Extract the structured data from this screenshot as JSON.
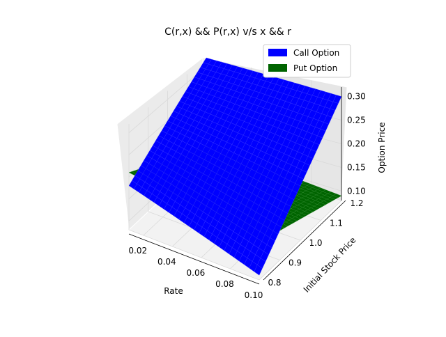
{
  "chart_data": {
    "type": "surface",
    "title": "C(r,x) && P(r,x) v/s x && r",
    "xlabel": "Rate",
    "ylabel": "Initial Stock Price",
    "zlabel": "Option Price",
    "xlim": [
      0.01,
      0.1
    ],
    "ylim": [
      0.8,
      1.2
    ],
    "zlim": [
      0.08,
      0.32
    ],
    "xticks": [
      "0.02",
      "0.04",
      "0.06",
      "0.08",
      "0.10"
    ],
    "yticks": [
      "0.8",
      "0.9",
      "1.0",
      "1.1",
      "1.2"
    ],
    "zticks": [
      "0.10",
      "0.15",
      "0.20",
      "0.25",
      "0.30"
    ],
    "grid": true,
    "legend_position": "top-right",
    "series": [
      {
        "name": "Call Option",
        "color": "#0000ff",
        "corners": [
          {
            "x": 0.01,
            "y": 0.8,
            "z": 0.18
          },
          {
            "x": 0.1,
            "y": 0.8,
            "z": 0.09
          },
          {
            "x": 0.1,
            "y": 1.2,
            "z": 0.3
          },
          {
            "x": 0.01,
            "y": 1.2,
            "z": 0.32
          }
        ]
      },
      {
        "name": "Put Option",
        "color": "#006400",
        "corners": [
          {
            "x": 0.01,
            "y": 0.8,
            "z": 0.21
          },
          {
            "x": 0.1,
            "y": 0.8,
            "z": 0.16
          },
          {
            "x": 0.1,
            "y": 1.2,
            "z": 0.09
          },
          {
            "x": 0.01,
            "y": 1.2,
            "z": 0.11
          }
        ]
      }
    ]
  }
}
